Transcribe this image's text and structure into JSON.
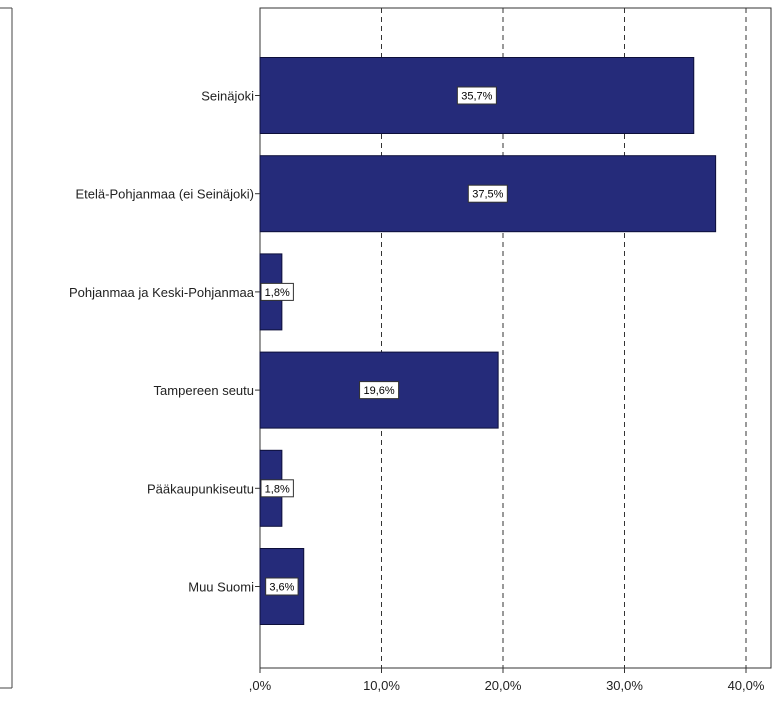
{
  "chart_data": {
    "type": "bar",
    "orientation": "horizontal",
    "categories": [
      "Seinäjoki",
      "Etelä-Pohjanmaa (ei Seinäjoki)",
      "Pohjanmaa ja Keski-Pohjanmaa",
      "Tampereen seutu",
      "Pääkaupunkiseutu",
      "Muu Suomi"
    ],
    "values": [
      35.7,
      37.5,
      1.8,
      19.6,
      1.8,
      3.6
    ],
    "data_labels": [
      "35,7%",
      "37,5%",
      "1,8%",
      "19,6%",
      "1,8%",
      "3,6%"
    ],
    "xlim": [
      0,
      42
    ],
    "x_ticks": [
      0,
      10,
      20,
      30,
      40
    ],
    "x_tick_labels": [
      ",0%",
      "10,0%",
      "20,0%",
      "30,0%",
      "40,0%"
    ],
    "grid": "vertical-dashed",
    "bar_color": "#252b7a",
    "title": "",
    "xlabel": "",
    "ylabel": ""
  }
}
